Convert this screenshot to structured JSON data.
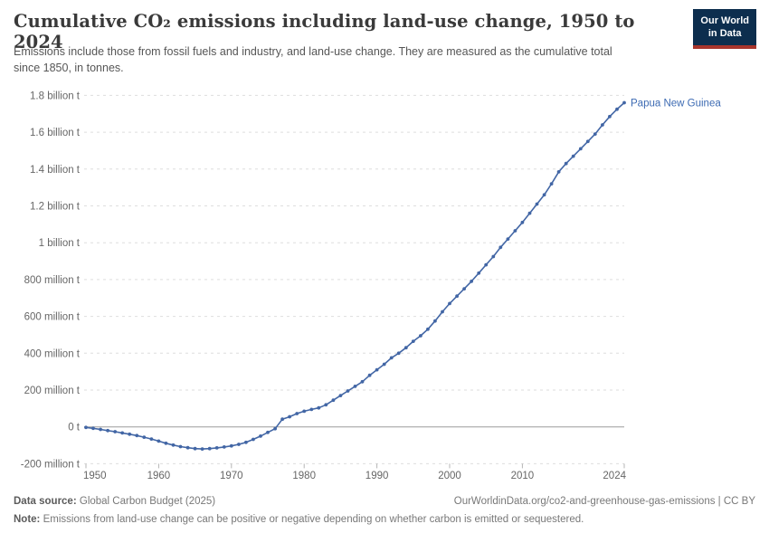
{
  "header": {
    "title": "Cumulative CO₂ emissions including land-use change, 1950 to 2024",
    "subtitle": "Emissions include those from fossil fuels and industry, and land-use change. They are measured as the cumulative total since 1850, in tonnes.",
    "logo": {
      "line1": "Our World",
      "line2": "in Data",
      "bg_color": "#0d2e4e",
      "stripe_color": "#a8352c"
    }
  },
  "footer": {
    "data_source_label": "Data source:",
    "data_source_value": "Global Carbon Budget (2025)",
    "link_text": "OurWorldinData.org/co2-and-greenhouse-gas-emissions | CC BY",
    "note_label": "Note:",
    "note_text": "Emissions from land-use change can be positive or negative depending on whether carbon is emitted or sequestered."
  },
  "chart_data": {
    "type": "line",
    "title": "Cumulative CO₂ emissions including land-use change, 1950 to 2024",
    "unit": "tonnes",
    "grid": true,
    "x_start": 1950,
    "x_end": 2024,
    "ylim_million_t": [
      -200,
      1800
    ],
    "yticks": [
      {
        "value_million_t": 1800,
        "label": "1.8 billion t"
      },
      {
        "value_million_t": 1600,
        "label": "1.6 billion t"
      },
      {
        "value_million_t": 1400,
        "label": "1.4 billion t"
      },
      {
        "value_million_t": 1200,
        "label": "1.2 billion t"
      },
      {
        "value_million_t": 1000,
        "label": "1 billion t"
      },
      {
        "value_million_t": 800,
        "label": "800 million t"
      },
      {
        "value_million_t": 600,
        "label": "600 million t"
      },
      {
        "value_million_t": 400,
        "label": "400 million t"
      },
      {
        "value_million_t": 200,
        "label": "200 million t"
      },
      {
        "value_million_t": 0,
        "label": "0 t"
      },
      {
        "value_million_t": -200,
        "label": "-200 million t"
      }
    ],
    "xticks": [
      {
        "year": 1950,
        "label": "1950"
      },
      {
        "year": 1960,
        "label": "1960"
      },
      {
        "year": 1970,
        "label": "1970"
      },
      {
        "year": 1980,
        "label": "1980"
      },
      {
        "year": 1990,
        "label": "1990"
      },
      {
        "year": 2000,
        "label": "2000"
      },
      {
        "year": 2010,
        "label": "2010"
      },
      {
        "year": 2024,
        "label": "2024"
      }
    ],
    "series": [
      {
        "name": "Papua New Guinea",
        "color": "#4266a5",
        "label_color": "#3d6bb3",
        "years": [
          1950,
          1951,
          1952,
          1953,
          1954,
          1955,
          1956,
          1957,
          1958,
          1959,
          1960,
          1961,
          1962,
          1963,
          1964,
          1965,
          1966,
          1967,
          1968,
          1969,
          1970,
          1971,
          1972,
          1973,
          1974,
          1975,
          1976,
          1977,
          1978,
          1979,
          1980,
          1981,
          1982,
          1983,
          1984,
          1985,
          1986,
          1987,
          1988,
          1989,
          1990,
          1991,
          1992,
          1993,
          1994,
          1995,
          1996,
          1997,
          1998,
          1999,
          2000,
          2001,
          2002,
          2003,
          2004,
          2005,
          2006,
          2007,
          2008,
          2009,
          2010,
          2011,
          2012,
          2013,
          2014,
          2015,
          2016,
          2017,
          2018,
          2019,
          2020,
          2021,
          2022,
          2023,
          2024
        ],
        "values_million_tonnes": [
          -3,
          -8,
          -14,
          -20,
          -26,
          -33,
          -40,
          -47,
          -56,
          -66,
          -77,
          -89,
          -99,
          -107,
          -113,
          -118,
          -120,
          -118,
          -114,
          -109,
          -103,
          -95,
          -84,
          -68,
          -50,
          -30,
          -10,
          42,
          55,
          72,
          85,
          95,
          103,
          120,
          145,
          170,
          195,
          220,
          245,
          280,
          310,
          340,
          375,
          400,
          430,
          465,
          495,
          530,
          575,
          625,
          670,
          710,
          750,
          790,
          835,
          880,
          925,
          975,
          1020,
          1065,
          1110,
          1160,
          1210,
          1260,
          1320,
          1385,
          1430,
          1470,
          1510,
          1550,
          1590,
          1640,
          1685,
          1725,
          1760
        ]
      }
    ]
  },
  "colors": {
    "gridline": "#dedede",
    "zero_line": "#9b9b9b",
    "tick": "#b5b5b5",
    "axis_text": "#666666"
  }
}
